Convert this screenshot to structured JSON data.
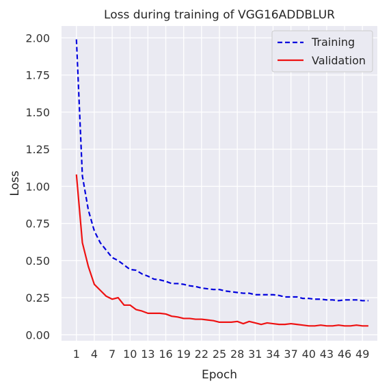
{
  "chart_data": {
    "type": "line",
    "title": "Loss during training of VGG16ADDBLUR",
    "xlabel": "Epoch",
    "ylabel": "Loss",
    "xlim": [
      -1.5,
      51.5
    ],
    "ylim": [
      -0.04,
      2.08
    ],
    "xticks": [
      1,
      4,
      7,
      10,
      13,
      16,
      19,
      22,
      25,
      28,
      31,
      34,
      37,
      40,
      43,
      46,
      49
    ],
    "yticks": [
      0.0,
      0.25,
      0.5,
      0.75,
      1.0,
      1.25,
      1.5,
      1.75,
      2.0
    ],
    "ytick_labels": [
      "0.00",
      "0.25",
      "0.50",
      "0.75",
      "1.00",
      "1.25",
      "1.50",
      "1.75",
      "2.00"
    ],
    "grid": true,
    "legend_position": "top-right",
    "x": [
      1,
      2,
      3,
      4,
      5,
      6,
      7,
      8,
      9,
      10,
      11,
      12,
      13,
      14,
      15,
      16,
      17,
      18,
      19,
      20,
      21,
      22,
      23,
      24,
      25,
      26,
      27,
      28,
      29,
      30,
      31,
      32,
      33,
      34,
      35,
      36,
      37,
      38,
      39,
      40,
      41,
      42,
      43,
      44,
      45,
      46,
      47,
      48,
      49,
      50
    ],
    "series": [
      {
        "name": "Training",
        "color": "#0000dd",
        "style": "dashed",
        "values": [
          1.99,
          1.07,
          0.84,
          0.7,
          0.62,
          0.57,
          0.52,
          0.5,
          0.47,
          0.44,
          0.435,
          0.41,
          0.395,
          0.375,
          0.37,
          0.36,
          0.345,
          0.345,
          0.34,
          0.33,
          0.325,
          0.315,
          0.31,
          0.305,
          0.305,
          0.295,
          0.29,
          0.285,
          0.28,
          0.28,
          0.27,
          0.27,
          0.27,
          0.27,
          0.265,
          0.255,
          0.255,
          0.255,
          0.245,
          0.245,
          0.24,
          0.24,
          0.235,
          0.235,
          0.23,
          0.235,
          0.235,
          0.235,
          0.23,
          0.23
        ]
      },
      {
        "name": "Validation",
        "color": "#ee1111",
        "style": "solid",
        "values": [
          1.08,
          0.62,
          0.46,
          0.34,
          0.3,
          0.26,
          0.24,
          0.25,
          0.2,
          0.2,
          0.17,
          0.16,
          0.145,
          0.145,
          0.145,
          0.14,
          0.125,
          0.12,
          0.11,
          0.11,
          0.105,
          0.105,
          0.1,
          0.095,
          0.085,
          0.085,
          0.085,
          0.09,
          0.075,
          0.09,
          0.08,
          0.07,
          0.08,
          0.075,
          0.07,
          0.07,
          0.075,
          0.07,
          0.065,
          0.06,
          0.06,
          0.065,
          0.06,
          0.06,
          0.065,
          0.06,
          0.06,
          0.065,
          0.06,
          0.06
        ]
      }
    ]
  }
}
